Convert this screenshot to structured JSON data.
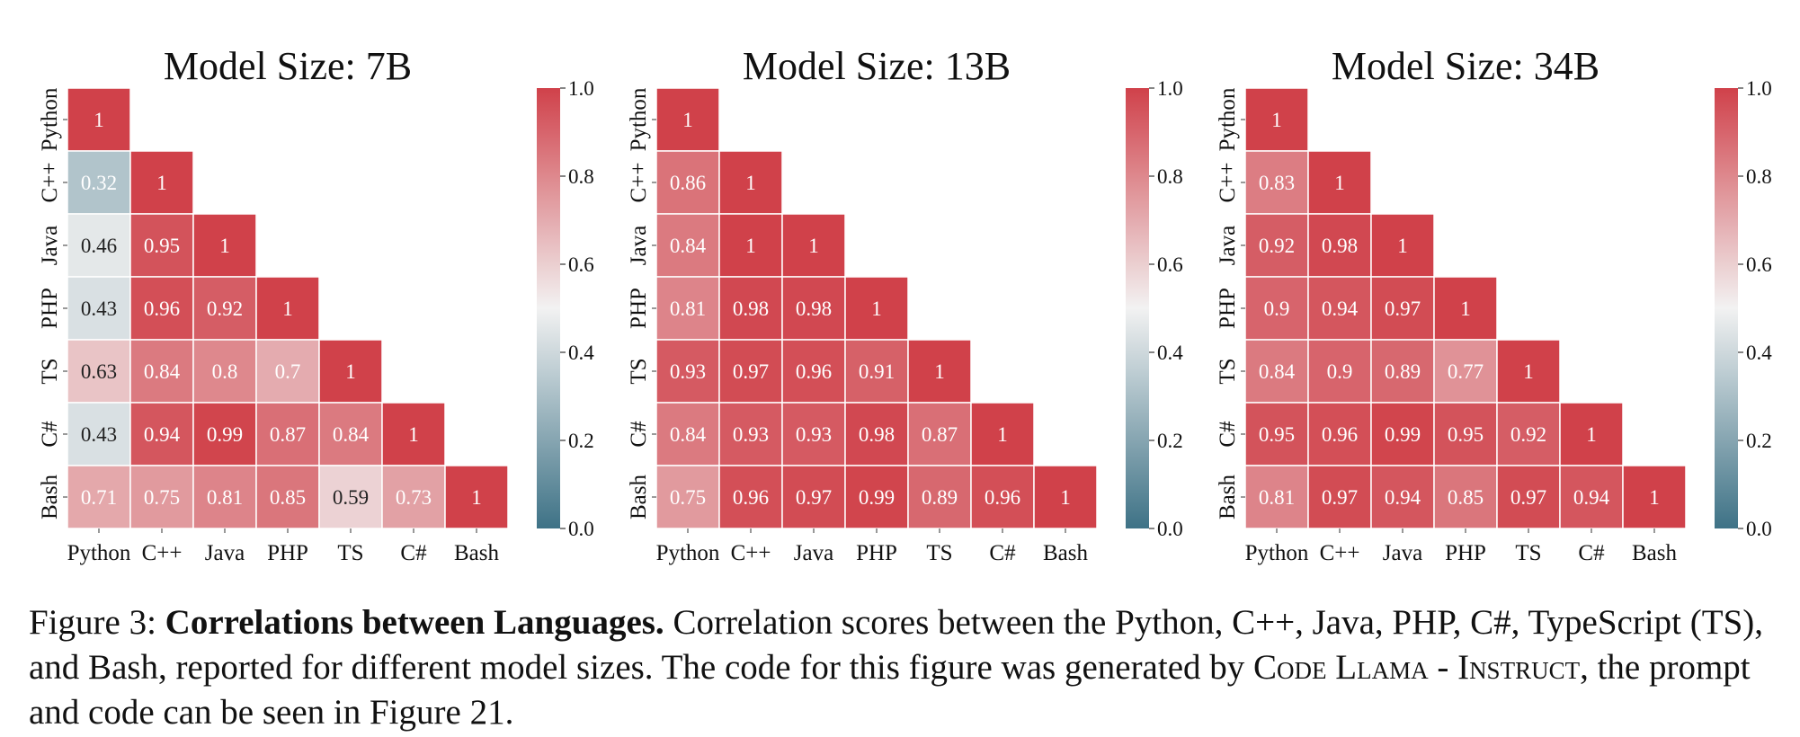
{
  "chart_data": [
    {
      "type": "heatmap",
      "title": "Model Size: 7B",
      "labels": [
        "Python",
        "C++",
        "Java",
        "PHP",
        "TS",
        "C#",
        "Bash"
      ],
      "matrix": [
        [
          1
        ],
        [
          0.32,
          1
        ],
        [
          0.46,
          0.95,
          1
        ],
        [
          0.43,
          0.96,
          0.92,
          1
        ],
        [
          0.63,
          0.84,
          0.8,
          0.7,
          1
        ],
        [
          0.43,
          0.94,
          0.99,
          0.87,
          0.84,
          1
        ],
        [
          0.71,
          0.75,
          0.81,
          0.85,
          0.59,
          0.73,
          1
        ]
      ],
      "colorbar": {
        "min": 0.0,
        "max": 1.0,
        "ticks": [
          "0.0",
          "0.2",
          "0.4",
          "0.6",
          "0.8",
          "1.0"
        ]
      }
    },
    {
      "type": "heatmap",
      "title": "Model Size: 13B",
      "labels": [
        "Python",
        "C++",
        "Java",
        "PHP",
        "TS",
        "C#",
        "Bash"
      ],
      "matrix": [
        [
          1
        ],
        [
          0.86,
          1
        ],
        [
          0.84,
          1,
          1
        ],
        [
          0.81,
          0.98,
          0.98,
          1
        ],
        [
          0.93,
          0.97,
          0.96,
          0.91,
          1
        ],
        [
          0.84,
          0.93,
          0.93,
          0.98,
          0.87,
          1
        ],
        [
          0.75,
          0.96,
          0.97,
          0.99,
          0.89,
          0.96,
          1
        ]
      ],
      "colorbar": {
        "min": 0.0,
        "max": 1.0,
        "ticks": [
          "0.0",
          "0.2",
          "0.4",
          "0.6",
          "0.8",
          "1.0"
        ]
      }
    },
    {
      "type": "heatmap",
      "title": "Model Size: 34B",
      "labels": [
        "Python",
        "C++",
        "Java",
        "PHP",
        "TS",
        "C#",
        "Bash"
      ],
      "matrix": [
        [
          1
        ],
        [
          0.83,
          1
        ],
        [
          0.92,
          0.98,
          1
        ],
        [
          0.9,
          0.94,
          0.97,
          1
        ],
        [
          0.84,
          0.9,
          0.89,
          0.77,
          1
        ],
        [
          0.95,
          0.96,
          0.99,
          0.95,
          0.92,
          1
        ],
        [
          0.81,
          0.97,
          0.94,
          0.85,
          0.97,
          0.94,
          1
        ]
      ],
      "colorbar": {
        "min": 0.0,
        "max": 1.0,
        "ticks": [
          "0.0",
          "0.2",
          "0.4",
          "0.6",
          "0.8",
          "1.0"
        ]
      }
    }
  ],
  "colors": {
    "low": "#3e7286",
    "mid": "#f2f2f2",
    "high": "#d0414a"
  },
  "caption": {
    "label": "Figure 3: ",
    "bold": "Correlations between Languages.",
    "text1": " Correlation scores between the Python, C++, Java, PHP, C#, TypeScript (TS), and Bash, reported for different model sizes. The code for this figure was generated by ",
    "smallcaps": "Code Llama - Instruct",
    "text2": ", the prompt and code can be seen in Figure 21."
  }
}
